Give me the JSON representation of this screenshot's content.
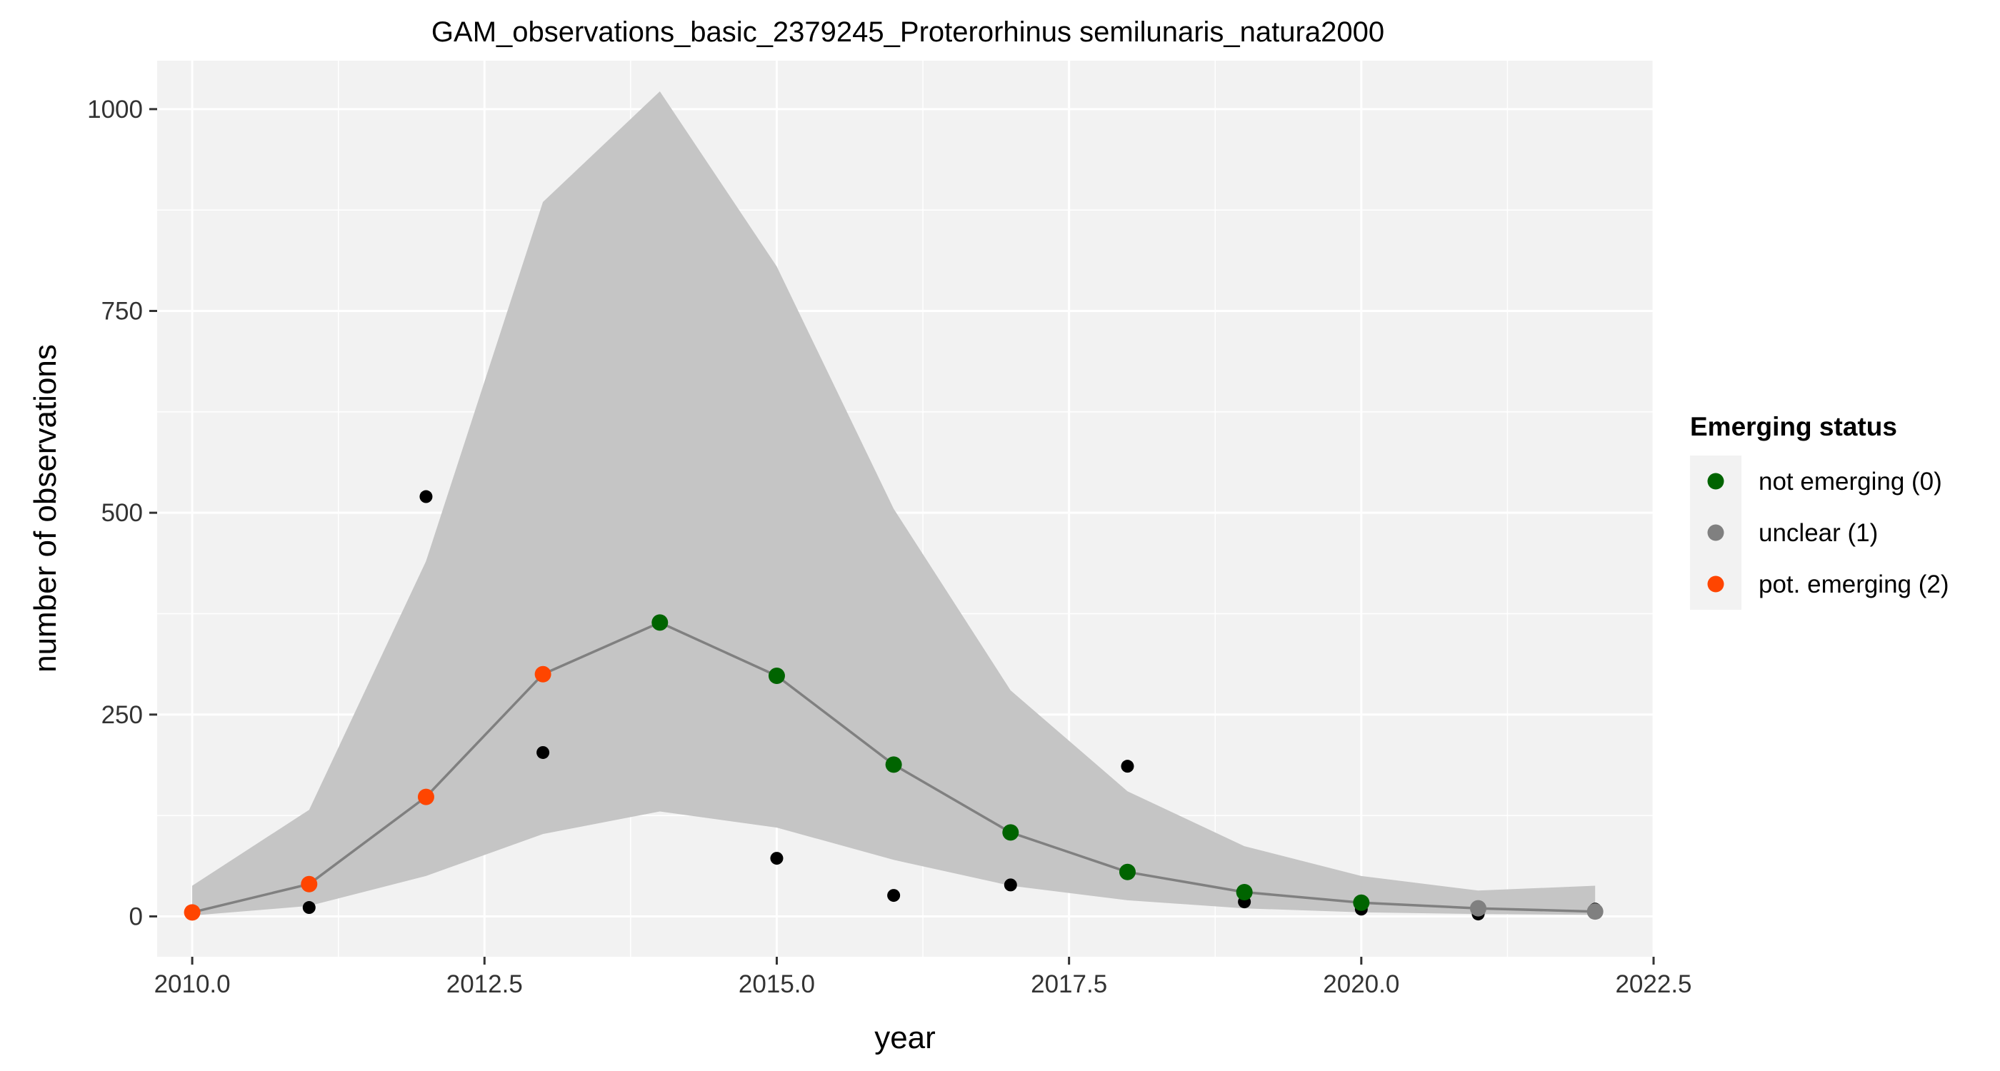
{
  "chart_data": {
    "type": "line",
    "title": "GAM_observations_basic_2379245_Proterorhinus semilunaris_natura2000",
    "xlabel": "year",
    "ylabel": "number of observations",
    "xlim": [
      2009.7,
      2022.5
    ],
    "ylim": [
      -50,
      1060
    ],
    "x_ticks": [
      2010,
      2012.5,
      2015,
      2017.5,
      2020,
      2022.5
    ],
    "x_tick_labels": [
      "2010.0",
      "2012.5",
      "2015.0",
      "2017.5",
      "2020.0",
      "2022.5"
    ],
    "y_ticks": [
      0,
      250,
      500,
      750,
      1000
    ],
    "y_tick_labels": [
      "0",
      "250",
      "500",
      "750",
      "1000"
    ],
    "grid": true,
    "legend": {
      "title": "Emerging status",
      "position": "right",
      "entries": [
        {
          "label": "not emerging (0)",
          "color": "#006400"
        },
        {
          "label": "unclear (1)",
          "color": "#808080"
        },
        {
          "label": "pot. emerging (2)",
          "color": "#FF4500"
        }
      ]
    },
    "observations": {
      "x": [
        2010,
        2011,
        2012,
        2013,
        2014,
        2015,
        2016,
        2017,
        2018,
        2019,
        2020,
        2021,
        2022
      ],
      "y": [
        3,
        11,
        520,
        203,
        365,
        72,
        26,
        39,
        186,
        18,
        9,
        3,
        9
      ]
    },
    "fit": {
      "x": [
        2010,
        2011,
        2012,
        2013,
        2014,
        2015,
        2016,
        2017,
        2018,
        2019,
        2020,
        2021,
        2022
      ],
      "y": [
        5,
        40,
        148,
        300,
        364,
        298,
        188,
        104,
        55,
        30,
        17,
        10,
        6
      ],
      "status": [
        2,
        2,
        2,
        2,
        0,
        0,
        0,
        0,
        0,
        0,
        0,
        1,
        1
      ]
    },
    "confidence_band": {
      "x": [
        2010,
        2011,
        2012,
        2013,
        2014,
        2015,
        2016,
        2017,
        2018,
        2019,
        2020,
        2021,
        2022
      ],
      "lower": [
        1,
        13,
        50,
        102,
        130,
        110,
        70,
        38,
        20,
        10,
        5,
        3,
        2
      ],
      "upper": [
        38,
        132,
        440,
        885,
        1022,
        805,
        505,
        280,
        155,
        87,
        50,
        32,
        38
      ]
    },
    "colors": {
      "panel": "#F2F2F2",
      "grid": "#FFFFFF",
      "band": "#C5C5C5",
      "fit_line": "#808080",
      "observation": "#000000"
    }
  }
}
